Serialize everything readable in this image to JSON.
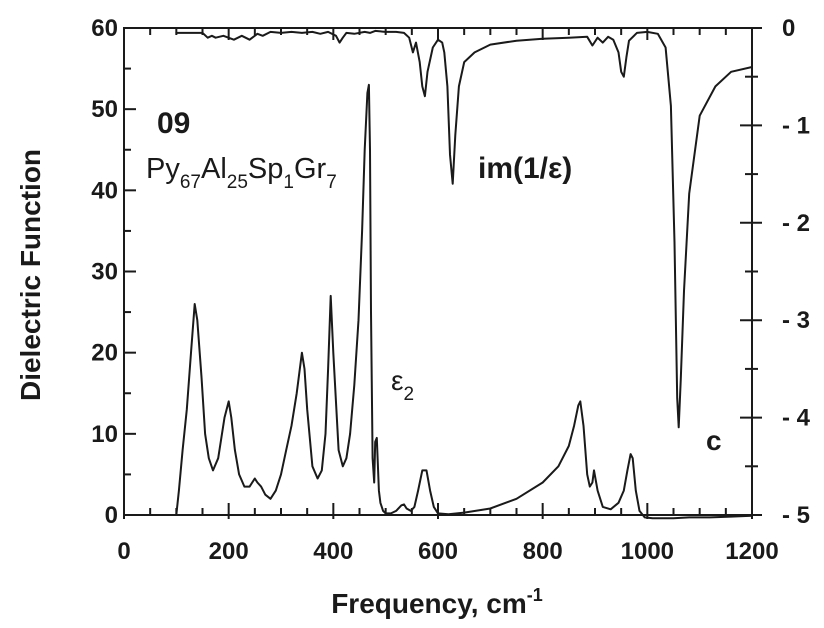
{
  "chart_data": {
    "type": "line",
    "xlabel": "Frequency,  cm",
    "xlabel_sup": "-1",
    "ylabel": "Dielectric  Function",
    "xlim": [
      0,
      1200
    ],
    "ylim_left": [
      0,
      60
    ],
    "ylim_right": [
      -5,
      0
    ],
    "x_ticks": [
      "0",
      "200",
      "400",
      "600",
      "800",
      "1000",
      "1200"
    ],
    "y_left_ticks": [
      "0",
      "10",
      "20",
      "30",
      "40",
      "50",
      "60"
    ],
    "y_right_ticks": [
      "0",
      "- 1",
      "- 2",
      "- 3",
      "- 4",
      "- 5"
    ],
    "annotations": {
      "sample_id": "09",
      "composition": [
        {
          "base": "Py",
          "sub": "67"
        },
        {
          "base": "Al",
          "sub": "25"
        },
        {
          "base": "Sp",
          "sub": "1"
        },
        {
          "base": "Gr",
          "sub": "7"
        }
      ],
      "im_label": "im(1/ε)",
      "eps2_base": "ε",
      "eps2_sub": "2",
      "panel_letter": "c"
    },
    "series": [
      {
        "name": "ε",
        "axis": "left",
        "x": [
          100,
          105,
          112,
          120,
          128,
          135,
          140,
          148,
          155,
          162,
          170,
          180,
          192,
          200,
          205,
          212,
          220,
          230,
          240,
          250,
          255,
          262,
          270,
          280,
          290,
          300,
          310,
          320,
          330,
          340,
          345,
          350,
          360,
          370,
          378,
          385,
          390,
          395,
          400,
          410,
          418,
          425,
          432,
          440,
          448,
          455,
          460,
          465,
          468,
          470,
          472,
          475,
          478,
          480,
          483,
          487,
          490,
          495,
          500,
          510,
          520,
          530,
          535,
          540,
          548,
          555,
          562,
          570,
          578,
          585,
          592,
          600,
          620,
          650,
          700,
          750,
          800,
          830,
          850,
          860,
          868,
          872,
          878,
          885,
          890,
          895,
          898,
          905,
          915,
          930,
          945,
          955,
          962,
          968,
          972,
          978,
          985,
          995,
          1010,
          1030,
          1050,
          1080,
          1120,
          1160,
          1200
        ],
        "y": [
          0,
          3,
          8,
          13,
          20,
          26,
          24,
          17,
          10,
          7,
          5.5,
          7,
          12,
          14,
          12,
          8,
          5,
          3.5,
          3.5,
          4.5,
          4,
          3.5,
          2.5,
          2,
          3,
          5,
          8,
          11,
          15,
          20,
          18,
          13,
          6,
          4.5,
          5.5,
          10,
          18,
          27,
          20,
          8,
          6,
          7,
          10,
          16,
          24,
          35,
          45,
          52,
          53,
          45,
          25,
          7,
          4,
          9,
          9.5,
          3,
          1.5,
          0.5,
          0.2,
          0.2,
          0.5,
          1.2,
          1.3,
          0.8,
          0.5,
          1,
          3,
          5.5,
          5.5,
          3,
          1,
          0.2,
          0.1,
          0.3,
          0.8,
          2,
          4,
          6,
          8.5,
          11,
          13.5,
          14,
          11,
          5,
          3.5,
          4,
          5.5,
          3,
          1,
          0.7,
          1.5,
          3,
          5.5,
          7.5,
          7,
          3,
          0.5,
          -0.3,
          -0.4,
          -0.4,
          -0.4,
          -0.3,
          -0.3,
          -0.2,
          -0.1
        ]
      },
      {
        "name": "im(1/ε)",
        "axis": "right",
        "x": [
          100,
          130,
          150,
          160,
          168,
          175,
          190,
          210,
          225,
          240,
          255,
          265,
          280,
          300,
          320,
          340,
          360,
          375,
          390,
          405,
          412,
          418,
          425,
          440,
          460,
          470,
          480,
          500,
          520,
          535,
          545,
          552,
          558,
          565,
          570,
          575,
          580,
          590,
          600,
          608,
          612,
          618,
          623,
          628,
          633,
          640,
          650,
          670,
          700,
          750,
          800,
          850,
          885,
          895,
          905,
          915,
          925,
          935,
          945,
          950,
          955,
          960,
          965,
          980,
          1000,
          1020,
          1035,
          1045,
          1052,
          1057,
          1060,
          1064,
          1070,
          1080,
          1100,
          1130,
          1160,
          1200
        ],
        "y": [
          -0.05,
          -0.05,
          -0.05,
          -0.1,
          -0.08,
          -0.1,
          -0.08,
          -0.12,
          -0.08,
          -0.12,
          -0.06,
          -0.08,
          -0.04,
          -0.05,
          -0.04,
          -0.05,
          -0.04,
          -0.06,
          -0.04,
          -0.08,
          -0.15,
          -0.1,
          -0.05,
          -0.06,
          -0.04,
          -0.05,
          -0.03,
          -0.04,
          -0.04,
          -0.05,
          -0.1,
          -0.25,
          -0.15,
          -0.35,
          -0.6,
          -0.7,
          -0.45,
          -0.2,
          -0.12,
          -0.15,
          -0.25,
          -0.6,
          -1.3,
          -1.6,
          -1.1,
          -0.6,
          -0.35,
          -0.25,
          -0.17,
          -0.13,
          -0.11,
          -0.1,
          -0.09,
          -0.18,
          -0.1,
          -0.15,
          -0.09,
          -0.12,
          -0.25,
          -0.45,
          -0.5,
          -0.3,
          -0.13,
          -0.05,
          -0.04,
          -0.06,
          -0.2,
          -0.8,
          -2.2,
          -3.8,
          -4.1,
          -3.6,
          -2.7,
          -1.7,
          -0.9,
          -0.6,
          -0.45,
          -0.4
        ]
      }
    ]
  }
}
